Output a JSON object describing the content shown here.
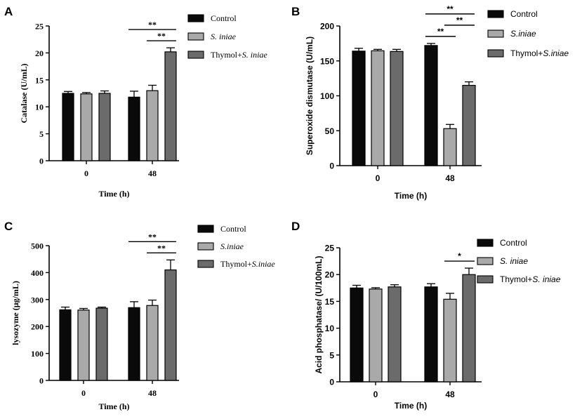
{
  "colors": {
    "control": "#0a0a0a",
    "s_iniae": "#a9a9a9",
    "thymol": "#6b6b6b",
    "axis": "#000000"
  },
  "chart_data": [
    {
      "panel": "A",
      "type": "bar",
      "categories": [
        "0",
        "48"
      ],
      "series": [
        {
          "name": "Control",
          "values": [
            12.5,
            11.8
          ],
          "errors": [
            0.35,
            1.1
          ]
        },
        {
          "name": "S. iniae",
          "values": [
            12.4,
            13.0
          ],
          "errors": [
            0.25,
            1.0
          ]
        },
        {
          "name": "Thymol+S. iniae",
          "values": [
            12.5,
            20.2
          ],
          "errors": [
            0.45,
            0.75
          ]
        }
      ],
      "legend": [
        "Control",
        "S. iniae",
        "Thymol+S. iniae"
      ],
      "xlabel": "Time (h)",
      "ylabel": "Catalase (U/mL)",
      "ylim": [
        0,
        25
      ],
      "yticks": [
        0,
        5,
        10,
        15,
        20,
        25
      ],
      "significance": [
        {
          "group": "48",
          "from": 1,
          "to": 2,
          "label": "**"
        },
        {
          "group": "48",
          "from": 0,
          "to": 2,
          "label": "**"
        }
      ]
    },
    {
      "panel": "B",
      "type": "bar",
      "categories": [
        "0",
        "48"
      ],
      "series": [
        {
          "name": "Control",
          "values": [
            164,
            172
          ],
          "errors": [
            4,
            3
          ]
        },
        {
          "name": "S.iniae",
          "values": [
            164.5,
            53
          ],
          "errors": [
            2,
            6
          ]
        },
        {
          "name": "Thymol+S.iniae",
          "values": [
            163.5,
            115
          ],
          "errors": [
            3,
            5
          ]
        }
      ],
      "legend": [
        "Control",
        "S.iniae",
        "Thymol+S.iniae"
      ],
      "xlabel": "Time (h)",
      "ylabel": "Superoxide dismutase (U/mL)",
      "ylim": [
        0,
        200
      ],
      "yticks": [
        0,
        50,
        100,
        150,
        200
      ],
      "significance": [
        {
          "group": "48",
          "from": 0,
          "to": 1,
          "label": "**"
        },
        {
          "group": "48",
          "from": 1,
          "to": 2,
          "label": "**"
        },
        {
          "group": "48",
          "from": 0,
          "to": 2,
          "label": "**"
        }
      ]
    },
    {
      "panel": "C",
      "type": "bar",
      "categories": [
        "0",
        "48"
      ],
      "series": [
        {
          "name": "Control",
          "values": [
            262,
            270
          ],
          "errors": [
            10,
            22
          ]
        },
        {
          "name": "S.iniae",
          "values": [
            261,
            278
          ],
          "errors": [
            6,
            20
          ]
        },
        {
          "name": "Thymol+S.iniae",
          "values": [
            268,
            410
          ],
          "errors": [
            4,
            37
          ]
        }
      ],
      "legend": [
        "Control",
        "S.iniae",
        "Thymol+S.iniae"
      ],
      "xlabel": "Time (h)",
      "ylabel": "lysozyme (μg/mL)",
      "ylim": [
        0,
        500
      ],
      "yticks": [
        0,
        100,
        200,
        300,
        400,
        500
      ],
      "significance": [
        {
          "group": "48",
          "from": 1,
          "to": 2,
          "label": "**"
        },
        {
          "group": "48",
          "from": 0,
          "to": 2,
          "label": "**"
        }
      ]
    },
    {
      "panel": "D",
      "type": "bar",
      "categories": [
        "0",
        "48"
      ],
      "series": [
        {
          "name": "Control",
          "values": [
            17.5,
            17.7
          ],
          "errors": [
            0.5,
            0.6
          ]
        },
        {
          "name": "S. iniae",
          "values": [
            17.3,
            15.4
          ],
          "errors": [
            0.25,
            1.1
          ]
        },
        {
          "name": "Thymol+S. iniae",
          "values": [
            17.7,
            20.0
          ],
          "errors": [
            0.4,
            1.2
          ]
        }
      ],
      "legend": [
        "Control",
        "S. iniae",
        "Thymol+S. iniae"
      ],
      "xlabel": "Time (h)",
      "ylabel": "Acid phosphatase/ (U/100mL)",
      "ylim": [
        0,
        25
      ],
      "yticks": [
        0,
        5,
        10,
        15,
        20,
        25
      ],
      "significance": [
        {
          "group": "48",
          "from": 1,
          "to": 2,
          "label": "*"
        }
      ]
    }
  ]
}
